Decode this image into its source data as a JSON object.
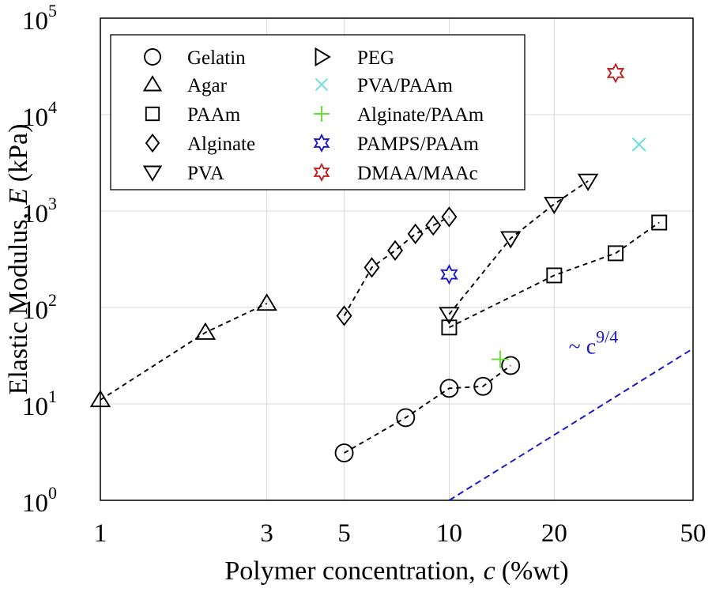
{
  "chart_data": {
    "type": "scatter",
    "title": "",
    "xlabel": {
      "prefix": "Polymer concentration,",
      "var": "c",
      "unit": "(%wt)"
    },
    "ylabel": {
      "prefix": "Elastic Modulus,",
      "var": "E",
      "unit": "(kPa)"
    },
    "xscale": "log",
    "yscale": "log",
    "xlim": [
      1,
      50
    ],
    "ylim": [
      1,
      100000
    ],
    "grid": true,
    "legend_position": "top-left",
    "x_ticks": [
      {
        "value": 1,
        "label": "1"
      },
      {
        "value": 3,
        "label": "3"
      },
      {
        "value": 5,
        "label": "5"
      },
      {
        "value": 10,
        "label": "10"
      },
      {
        "value": 20,
        "label": "20"
      },
      {
        "value": 50,
        "label": "50"
      }
    ],
    "y_ticks": [
      {
        "value": 1,
        "base": "10",
        "exp": "0"
      },
      {
        "value": 10,
        "base": "10",
        "exp": "1"
      },
      {
        "value": 100,
        "base": "10",
        "exp": "2"
      },
      {
        "value": 1000,
        "base": "10",
        "exp": "3"
      },
      {
        "value": 10000,
        "base": "10",
        "exp": "4"
      },
      {
        "value": 100000,
        "base": "10",
        "exp": "5"
      }
    ],
    "series": [
      {
        "name": "Gelatin",
        "marker": "circle",
        "color": "#000000",
        "connected": true,
        "points": [
          [
            5,
            3.1
          ],
          [
            7.5,
            7.2
          ],
          [
            10,
            14.5
          ],
          [
            12.5,
            15.2
          ],
          [
            15,
            25
          ]
        ]
      },
      {
        "name": "Agar",
        "marker": "triangle-up",
        "color": "#000000",
        "connected": true,
        "points": [
          [
            1,
            11
          ],
          [
            2,
            55
          ],
          [
            3,
            110
          ]
        ]
      },
      {
        "name": "PAAm",
        "marker": "square",
        "color": "#000000",
        "connected": true,
        "points": [
          [
            10,
            62
          ],
          [
            20,
            215
          ],
          [
            30,
            365
          ],
          [
            40,
            760
          ]
        ]
      },
      {
        "name": "Alginate",
        "marker": "diamond",
        "color": "#000000",
        "connected": true,
        "points": [
          [
            5,
            82
          ],
          [
            6,
            260
          ],
          [
            7,
            390
          ],
          [
            8,
            580
          ],
          [
            9,
            710
          ],
          [
            10,
            870
          ]
        ]
      },
      {
        "name": "PVA",
        "marker": "triangle-down",
        "color": "#000000",
        "connected": true,
        "points": [
          [
            10,
            85
          ],
          [
            15,
            520
          ],
          [
            20,
            1180
          ],
          [
            25,
            2050
          ]
        ]
      },
      {
        "name": "PEG",
        "marker": "triangle-right",
        "color": "#000000",
        "connected": false,
        "points": []
      },
      {
        "name": "PVA/PAAm",
        "marker": "x",
        "color": "#66dddd",
        "connected": false,
        "points": [
          [
            35,
            4900
          ]
        ]
      },
      {
        "name": "Alginate/PAAm",
        "marker": "plus",
        "color": "#66dd33",
        "connected": false,
        "points": [
          [
            14,
            29
          ]
        ]
      },
      {
        "name": "PAMPS/PAAm",
        "marker": "hexagram",
        "color": "#1a1acc",
        "connected": false,
        "points": [
          [
            10,
            220
          ]
        ]
      },
      {
        "name": "DMAA/MAAc",
        "marker": "hexagram",
        "color": "#c02020",
        "connected": false,
        "points": [
          [
            30,
            27000
          ]
        ]
      }
    ],
    "reference_line": {
      "label_prefix": "~ c",
      "label_exp": "9/4",
      "exponent": 2.25,
      "color": "#1a1acc",
      "points": [
        [
          10,
          1
        ],
        [
          50,
          37.5
        ]
      ],
      "label_anchor": [
        22,
        33
      ]
    }
  }
}
